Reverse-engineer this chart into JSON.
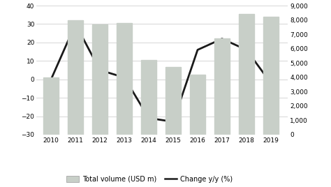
{
  "years": [
    2010,
    2011,
    2012,
    2013,
    2014,
    2015,
    2016,
    2017,
    2018,
    2019
  ],
  "total_volume": [
    4000,
    8000,
    7700,
    7800,
    5200,
    4700,
    4200,
    6700,
    8400,
    8200
  ],
  "change_yoy": [
    0,
    30,
    5,
    1,
    -21,
    -23,
    16,
    22,
    16,
    -2
  ],
  "bar_color": "#c8cfc8",
  "line_color": "#1a1a1a",
  "left_ylim": [
    -30,
    40
  ],
  "right_ylim": [
    0,
    9000
  ],
  "left_yticks": [
    -30,
    -20,
    -10,
    0,
    10,
    20,
    30,
    40
  ],
  "right_yticks": [
    0,
    1000,
    2000,
    3000,
    4000,
    5000,
    6000,
    7000,
    8000,
    9000
  ],
  "legend_bar_label": "Total volume (USD m)",
  "legend_line_label": "Change y/y (%)",
  "background_color": "#ffffff",
  "grid_color": "#d0d0d0"
}
